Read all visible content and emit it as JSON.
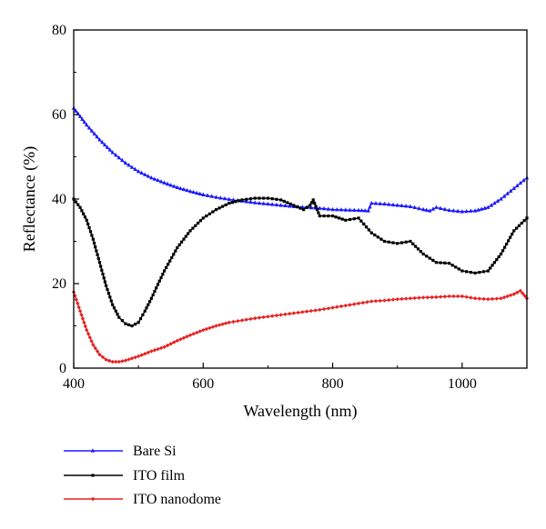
{
  "chart_data": {
    "type": "line",
    "title": "",
    "xlabel": "Wavelength (nm)",
    "ylabel": "Reflectance (%)",
    "xlim": [
      400,
      1100
    ],
    "ylim": [
      0,
      80
    ],
    "xticks": [
      400,
      600,
      800,
      1000
    ],
    "yticks": [
      0,
      20,
      40,
      60,
      80
    ],
    "grid": false,
    "legend_position": "below-left",
    "series": [
      {
        "name": "Bare Si",
        "color": "#1a1aff",
        "marker": "triangle",
        "x": [
          400,
          420,
          440,
          460,
          480,
          500,
          520,
          540,
          560,
          580,
          600,
          620,
          640,
          660,
          680,
          700,
          720,
          740,
          760,
          780,
          800,
          820,
          840,
          855,
          860,
          880,
          900,
          920,
          940,
          950,
          960,
          980,
          1000,
          1020,
          1040,
          1060,
          1080,
          1100
        ],
        "y": [
          61.5,
          57.5,
          54.0,
          51.0,
          48.5,
          46.5,
          45.0,
          43.8,
          42.7,
          41.8,
          41.0,
          40.4,
          39.9,
          39.5,
          39.1,
          38.8,
          38.5,
          38.2,
          38.0,
          37.8,
          37.5,
          37.4,
          37.3,
          37.2,
          39.0,
          38.8,
          38.5,
          38.2,
          37.5,
          37.2,
          38.0,
          37.3,
          37.0,
          37.2,
          38.0,
          40.0,
          42.5,
          45.0
        ]
      },
      {
        "name": "ITO film",
        "color": "#000000",
        "marker": "square",
        "x": [
          400,
          410,
          420,
          430,
          440,
          450,
          460,
          470,
          480,
          490,
          500,
          510,
          520,
          530,
          540,
          560,
          580,
          600,
          620,
          640,
          660,
          680,
          700,
          720,
          740,
          755,
          765,
          770,
          780,
          800,
          820,
          840,
          860,
          880,
          900,
          920,
          940,
          960,
          980,
          1000,
          1020,
          1040,
          1060,
          1080,
          1100
        ],
        "y": [
          40.0,
          38.0,
          35.0,
          30.5,
          25.0,
          19.5,
          15.0,
          12.0,
          10.5,
          10.0,
          10.8,
          13.5,
          16.5,
          19.8,
          23.0,
          28.5,
          32.5,
          35.5,
          37.5,
          39.0,
          39.8,
          40.2,
          40.2,
          39.8,
          38.5,
          37.5,
          38.5,
          39.8,
          36.0,
          36.0,
          35.0,
          35.5,
          32.0,
          30.0,
          29.5,
          30.0,
          27.0,
          25.0,
          24.8,
          23.0,
          22.5,
          23.0,
          27.0,
          32.5,
          35.5
        ]
      },
      {
        "name": "ITO nanodome",
        "color": "#e82020",
        "marker": "diamond",
        "x": [
          400,
          410,
          420,
          430,
          440,
          450,
          460,
          470,
          480,
          490,
          500,
          520,
          540,
          560,
          580,
          600,
          620,
          640,
          660,
          680,
          700,
          720,
          740,
          760,
          780,
          800,
          820,
          840,
          860,
          880,
          900,
          920,
          940,
          960,
          980,
          1000,
          1020,
          1040,
          1060,
          1080,
          1090,
          1100
        ],
        "y": [
          18.0,
          13.5,
          9.0,
          5.5,
          3.2,
          2.0,
          1.5,
          1.5,
          1.8,
          2.3,
          2.8,
          4.0,
          5.0,
          6.5,
          7.8,
          9.0,
          10.0,
          10.8,
          11.3,
          11.8,
          12.2,
          12.6,
          13.0,
          13.4,
          13.8,
          14.3,
          14.8,
          15.3,
          15.8,
          16.0,
          16.3,
          16.5,
          16.7,
          16.8,
          17.0,
          17.0,
          16.5,
          16.3,
          16.5,
          17.5,
          18.3,
          16.5
        ]
      }
    ]
  }
}
